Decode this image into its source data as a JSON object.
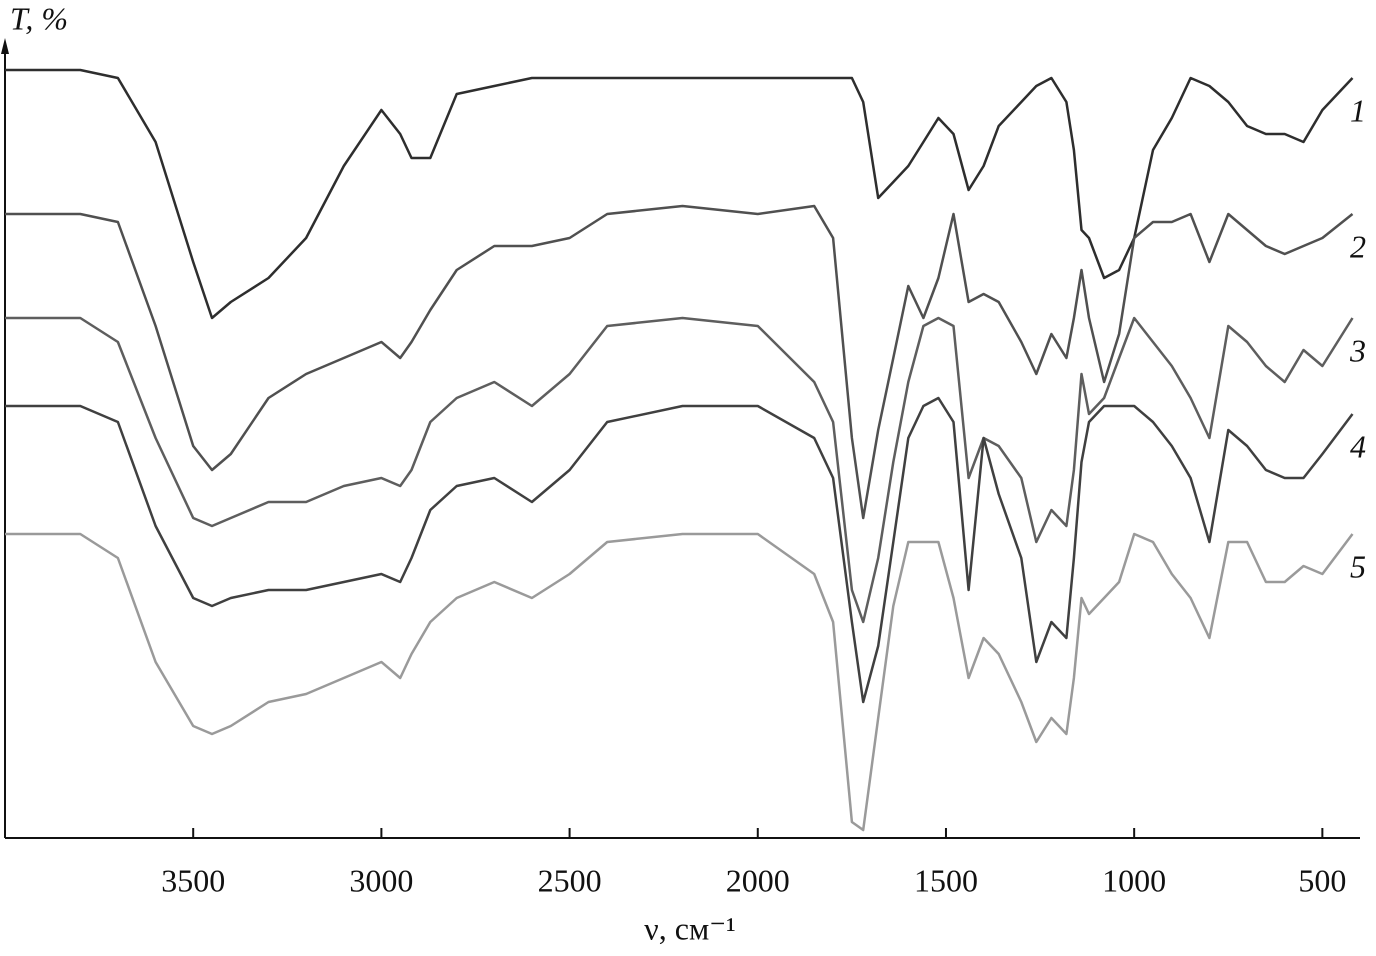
{
  "chart_data": {
    "type": "line",
    "y_label": "T, %",
    "x_label": "ν, см⁻¹",
    "xlim": [
      4000,
      400
    ],
    "xticks": [
      3500,
      3000,
      2500,
      2000,
      1500,
      1000,
      500
    ],
    "ylim": [
      0,
      100
    ],
    "x": [
      4000,
      3800,
      3700,
      3600,
      3500,
      3450,
      3400,
      3300,
      3200,
      3100,
      3000,
      2950,
      2920,
      2870,
      2800,
      2700,
      2600,
      2500,
      2400,
      2200,
      2000,
      1850,
      1800,
      1750,
      1720,
      1680,
      1640,
      1600,
      1560,
      1520,
      1480,
      1440,
      1400,
      1360,
      1300,
      1260,
      1220,
      1180,
      1160,
      1140,
      1120,
      1080,
      1040,
      1000,
      950,
      900,
      850,
      800,
      750,
      700,
      650,
      600,
      550,
      500,
      420
    ],
    "series": [
      {
        "name": "1",
        "color": "#2e2e2e",
        "values": [
          96,
          96,
          95,
          87,
          72,
          65,
          67,
          70,
          75,
          84,
          91,
          88,
          85,
          85,
          93,
          94,
          95,
          95,
          95,
          95,
          95,
          95,
          95,
          95,
          92,
          80,
          82,
          84,
          87,
          90,
          88,
          81,
          84,
          89,
          92,
          94,
          95,
          92,
          86,
          76,
          75,
          70,
          71,
          75,
          86,
          90,
          95,
          94,
          92,
          89,
          88,
          88,
          87,
          91,
          95
        ]
      },
      {
        "name": "2",
        "color": "#505050",
        "values": [
          78,
          78,
          77,
          64,
          49,
          46,
          48,
          55,
          58,
          60,
          62,
          60,
          62,
          66,
          71,
          74,
          74,
          75,
          78,
          79,
          78,
          79,
          75,
          50,
          40,
          51,
          60,
          69,
          65,
          70,
          78,
          67,
          68,
          67,
          62,
          58,
          63,
          60,
          65,
          71,
          65,
          57,
          63,
          75,
          77,
          77,
          78,
          72,
          78,
          76,
          74,
          73,
          74,
          75,
          78
        ]
      },
      {
        "name": "3",
        "color": "#5e5e5e",
        "values": [
          65,
          65,
          62,
          50,
          40,
          39,
          40,
          42,
          42,
          44,
          45,
          44,
          46,
          52,
          55,
          57,
          54,
          58,
          64,
          65,
          64,
          57,
          52,
          31,
          27,
          35,
          47,
          57,
          64,
          65,
          64,
          45,
          50,
          49,
          45,
          37,
          41,
          39,
          46,
          58,
          53,
          55,
          60,
          65,
          62,
          59,
          55,
          50,
          64,
          62,
          59,
          57,
          61,
          59,
          65
        ]
      },
      {
        "name": "4",
        "color": "#404040",
        "values": [
          54,
          54,
          52,
          39,
          30,
          29,
          30,
          31,
          31,
          32,
          33,
          32,
          35,
          41,
          44,
          45,
          42,
          46,
          52,
          54,
          54,
          50,
          45,
          27,
          17,
          24,
          37,
          50,
          54,
          55,
          52,
          31,
          50,
          43,
          35,
          22,
          27,
          25,
          35,
          47,
          52,
          54,
          54,
          54,
          52,
          49,
          45,
          37,
          51,
          49,
          46,
          45,
          45,
          48,
          53
        ]
      },
      {
        "name": "5",
        "color": "#9a9a9a",
        "values": [
          38,
          38,
          35,
          22,
          14,
          13,
          14,
          17,
          18,
          20,
          22,
          20,
          23,
          27,
          30,
          32,
          30,
          33,
          37,
          38,
          38,
          33,
          27,
          2,
          1,
          15,
          29,
          37,
          37,
          37,
          30,
          20,
          25,
          23,
          17,
          12,
          15,
          13,
          20,
          30,
          28,
          30,
          32,
          38,
          37,
          33,
          30,
          25,
          37,
          37,
          32,
          32,
          34,
          33,
          38
        ]
      }
    ]
  }
}
